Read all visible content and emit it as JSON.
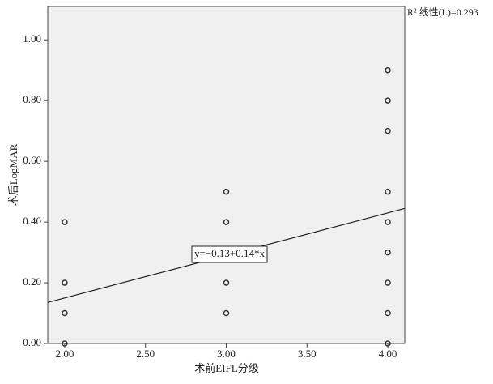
{
  "chart_data": {
    "type": "scatter",
    "x_label": "术前EIFL分级",
    "y_label": "术后LogMAR",
    "x": [
      2,
      2,
      2,
      2,
      3,
      3,
      3,
      3,
      4,
      4,
      4,
      4,
      4,
      4,
      4,
      4,
      4
    ],
    "values": [
      0.4,
      0.2,
      0.1,
      0.0,
      0.5,
      0.4,
      0.2,
      0.1,
      0.9,
      0.8,
      0.7,
      0.5,
      0.4,
      0.3,
      0.2,
      0.1,
      0.0
    ],
    "color": "#333333",
    "xlim": [
      1.895,
      4.105
    ],
    "ylim": [
      0,
      1.11
    ],
    "xticks": [
      {
        "value": 2,
        "label": "2.00"
      },
      {
        "value": 2.5,
        "label": "2.50"
      },
      {
        "value": 3,
        "label": "3.00"
      },
      {
        "value": 3.5,
        "label": "3.50"
      },
      {
        "value": 4,
        "label": "4.00"
      }
    ],
    "yticks": [
      {
        "value": 0,
        "label": "0.00"
      },
      {
        "value": 0.2,
        "label": "0.20"
      },
      {
        "value": 0.4,
        "label": "0.40"
      },
      {
        "value": 0.6,
        "label": "0.60"
      },
      {
        "value": 0.8,
        "label": "0.80"
      },
      {
        "value": 1,
        "label": "1.00"
      }
    ],
    "fit": {
      "intercept": -0.13,
      "slope": 0.14,
      "label": "y=−0.13+0.14*x",
      "r2_label": "R² 线性(L)=0.293"
    }
  }
}
